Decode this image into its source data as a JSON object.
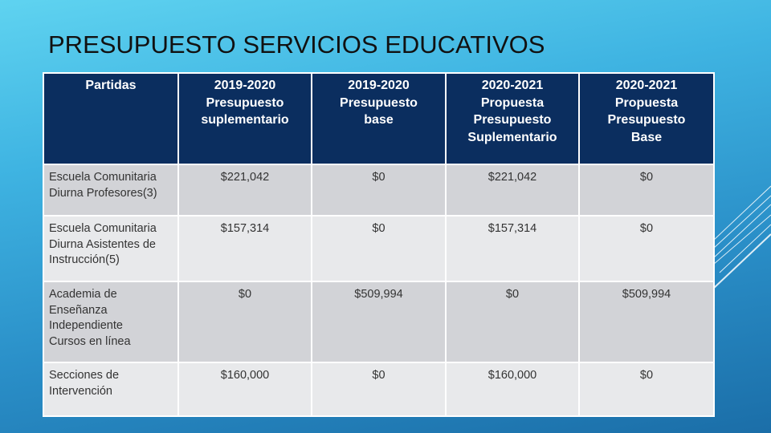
{
  "title": "PRESUPUESTO SERVICIOS EDUCATIVOS",
  "table": {
    "header": [
      [
        "Partidas"
      ],
      [
        "2019-2020",
        "Presupuesto",
        "suplementario"
      ],
      [
        "2019-2020",
        "Presupuesto",
        "base"
      ],
      [
        "2020-2021",
        "Propuesta",
        "Presupuesto",
        "Suplementario"
      ],
      [
        "2020-2021",
        "Propuesta",
        "Presupuesto",
        "Base"
      ]
    ],
    "rows": [
      [
        [
          "Escuela Comunitaria",
          "Diurna Profesores(3)"
        ],
        "$221,042",
        "$0",
        "$221,042",
        "$0"
      ],
      [
        [
          "Escuela Comunitaria",
          "Diurna Asistentes de",
          "Instrucción(5)"
        ],
        "$157,314",
        "$0",
        "$157,314",
        "$0"
      ],
      [
        [
          "Academia de",
          "Enseñanza",
          "Independiente",
          "Cursos en línea"
        ],
        "$0",
        "$509,994",
        "$0",
        "$509,994"
      ],
      [
        [
          "Secciones de",
          "Intervención"
        ],
        "$160,000",
        "$0",
        "$160,000",
        "$0"
      ]
    ]
  }
}
